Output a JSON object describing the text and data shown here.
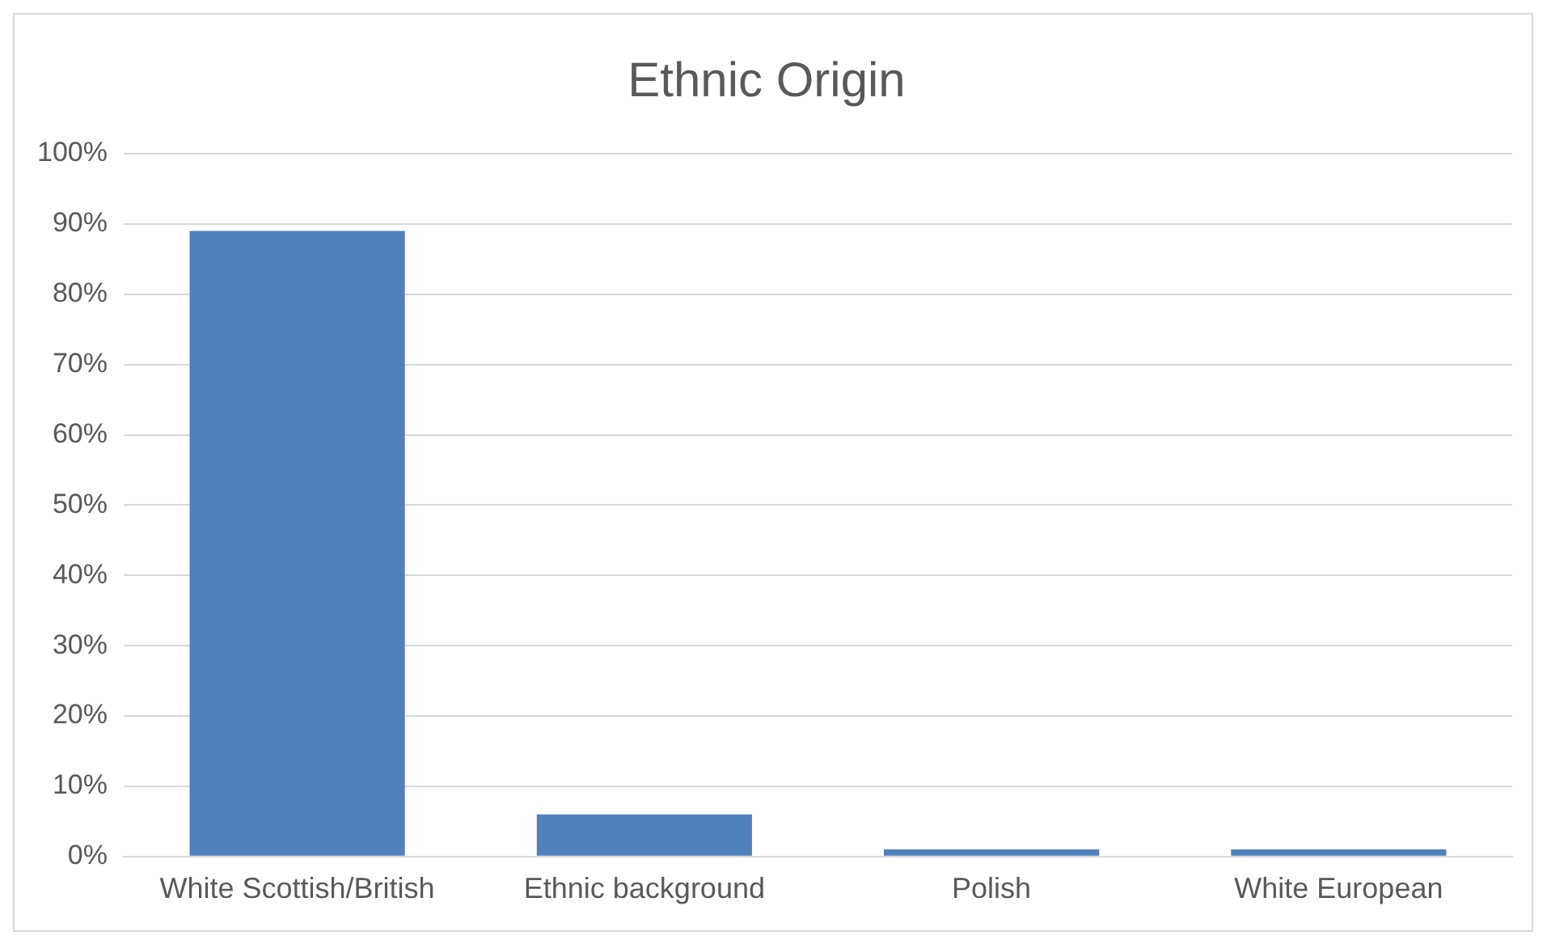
{
  "chart_data": {
    "type": "bar",
    "title": "Ethnic Origin",
    "categories": [
      "White Scottish/British",
      "Ethnic background",
      "Polish",
      "White European"
    ],
    "values": [
      89,
      6,
      1,
      1
    ],
    "color": "#4f81bd",
    "ylim": [
      0,
      100
    ],
    "yticks": [
      {
        "value": 0,
        "label": "0%"
      },
      {
        "value": 10,
        "label": "10%"
      },
      {
        "value": 20,
        "label": "20%"
      },
      {
        "value": 30,
        "label": "30%"
      },
      {
        "value": 40,
        "label": "40%"
      },
      {
        "value": 50,
        "label": "50%"
      },
      {
        "value": 60,
        "label": "60%"
      },
      {
        "value": 70,
        "label": "70%"
      },
      {
        "value": 80,
        "label": "80%"
      },
      {
        "value": 90,
        "label": "90%"
      },
      {
        "value": 100,
        "label": "100%"
      }
    ],
    "grid": "y",
    "legend": false
  }
}
